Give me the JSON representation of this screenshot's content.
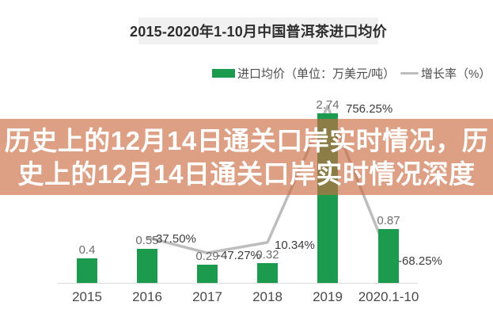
{
  "title": "2015-2020年1-10月中国普洱茶进口均价",
  "legend": {
    "bar_label": "进口均价（单位：万美元/吨）",
    "line_label": "增长率（%）"
  },
  "overlay": {
    "lines": [
      "历史上的12月14日通关口岸实时情况，历",
      "史上的12月14日通关口岸实时情况深度"
    ]
  },
  "colors": {
    "bar": "#1c9b4f",
    "line": "#bdbdbd",
    "banner_bg": "rgba(203,106,64,0.64)",
    "banner_text": "#ffffff",
    "title_bg": "#f1f1f1"
  },
  "chart_data": {
    "type": "bar",
    "title": "2015-2020年1-10月中国普洱茶进口均价",
    "categories": [
      "2015",
      "2016",
      "2017",
      "2018",
      "2019",
      "2020.1-10"
    ],
    "series": [
      {
        "name": "进口均价（单位：万美元/吨）",
        "type": "bar",
        "unit": "万美元/吨",
        "values": [
          0.4,
          0.55,
          0.29,
          0.32,
          2.74,
          0.87
        ],
        "labels": [
          "0.4",
          "0.55",
          "0.29",
          "0.32",
          "2.74",
          "0.87"
        ]
      },
      {
        "name": "增长率（%）",
        "type": "line",
        "unit": "%",
        "values": [
          null,
          37.5,
          -47.27,
          10.34,
          756.25,
          -68.25
        ],
        "labels": [
          null,
          "37.50%",
          "-47.27%",
          "10.34%",
          "756.25%",
          "-68.25%"
        ]
      }
    ],
    "legend_position": "top",
    "grid": false,
    "y_axis_visible": false,
    "x_axis_line": true
  }
}
